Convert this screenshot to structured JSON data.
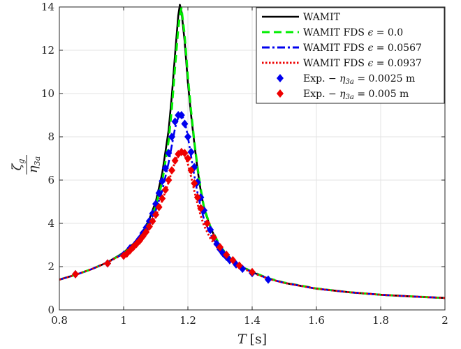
{
  "chart_data": {
    "type": "line",
    "xlabel": "T [s]",
    "ylabel": "ζg / η3a",
    "xlim": [
      0.8,
      2.0
    ],
    "ylim": [
      0,
      14
    ],
    "xticks": [
      "0.8",
      "1",
      "1.2",
      "1.4",
      "1.6",
      "1.8",
      "2"
    ],
    "yticks": [
      "0",
      "2",
      "4",
      "6",
      "8",
      "10",
      "12",
      "14"
    ],
    "grid": true,
    "legend_position": "top-right",
    "series": [
      {
        "name": "WAMIT",
        "kind": "line",
        "color": "#000000",
        "style": "solid",
        "x": [
          0.8,
          0.85,
          0.9,
          0.95,
          1.0,
          1.03,
          1.06,
          1.08,
          1.1,
          1.12,
          1.14,
          1.15,
          1.16,
          1.17,
          1.175,
          1.18,
          1.19,
          1.2,
          1.21,
          1.22,
          1.23,
          1.24,
          1.25,
          1.27,
          1.3,
          1.33,
          1.36,
          1.4,
          1.45,
          1.5,
          1.6,
          1.7,
          1.8,
          1.9,
          2.0
        ],
        "y": [
          1.4,
          1.62,
          1.88,
          2.2,
          2.65,
          3.05,
          3.6,
          4.2,
          5.0,
          6.3,
          8.3,
          9.9,
          11.8,
          13.6,
          14.1,
          13.8,
          12.4,
          10.5,
          9.0,
          7.7,
          6.5,
          5.5,
          4.7,
          3.8,
          2.9,
          2.4,
          2.05,
          1.75,
          1.45,
          1.25,
          0.98,
          0.82,
          0.7,
          0.62,
          0.55
        ]
      },
      {
        "name": "WAMIT FDS ϵ = 0.0",
        "kind": "line",
        "color": "#00ee00",
        "style": "dashed",
        "x": [
          0.8,
          0.85,
          0.9,
          0.95,
          1.0,
          1.03,
          1.06,
          1.08,
          1.1,
          1.12,
          1.14,
          1.15,
          1.16,
          1.17,
          1.175,
          1.18,
          1.19,
          1.2,
          1.21,
          1.22,
          1.23,
          1.24,
          1.25,
          1.27,
          1.3,
          1.33,
          1.36,
          1.4,
          1.45,
          1.5,
          1.6,
          1.7,
          1.8,
          1.9,
          2.0
        ],
        "y": [
          1.4,
          1.62,
          1.88,
          2.2,
          2.62,
          3.0,
          3.5,
          4.05,
          4.8,
          5.9,
          7.8,
          9.3,
          11.2,
          13.0,
          13.6,
          13.95,
          12.7,
          10.8,
          9.2,
          7.8,
          6.6,
          5.6,
          4.75,
          3.85,
          2.95,
          2.42,
          2.07,
          1.76,
          1.46,
          1.26,
          0.99,
          0.82,
          0.7,
          0.62,
          0.55
        ]
      },
      {
        "name": "WAMIT FDS ϵ = 0.0567",
        "kind": "line",
        "color": "#0000ee",
        "style": "dashdot",
        "x": [
          0.8,
          0.85,
          0.9,
          0.95,
          1.0,
          1.03,
          1.06,
          1.08,
          1.1,
          1.12,
          1.14,
          1.15,
          1.16,
          1.17,
          1.18,
          1.19,
          1.2,
          1.21,
          1.22,
          1.23,
          1.24,
          1.25,
          1.27,
          1.3,
          1.33,
          1.36,
          1.4,
          1.45,
          1.5,
          1.6,
          1.7,
          1.8,
          1.9,
          2.0
        ],
        "y": [
          1.4,
          1.62,
          1.88,
          2.2,
          2.6,
          2.95,
          3.45,
          3.95,
          4.6,
          5.5,
          6.8,
          7.6,
          8.4,
          8.9,
          9.0,
          8.75,
          8.0,
          7.1,
          6.2,
          5.4,
          4.75,
          4.2,
          3.5,
          2.8,
          2.35,
          2.03,
          1.74,
          1.45,
          1.25,
          0.98,
          0.82,
          0.7,
          0.62,
          0.55
        ]
      },
      {
        "name": "WAMIT FDS ϵ = 0.0937",
        "kind": "line",
        "color": "#ee0000",
        "style": "dotted",
        "x": [
          0.8,
          0.85,
          0.9,
          0.95,
          1.0,
          1.03,
          1.06,
          1.08,
          1.1,
          1.12,
          1.14,
          1.15,
          1.16,
          1.17,
          1.18,
          1.19,
          1.2,
          1.21,
          1.22,
          1.23,
          1.24,
          1.25,
          1.27,
          1.3,
          1.33,
          1.36,
          1.4,
          1.45,
          1.5,
          1.6,
          1.7,
          1.8,
          1.9,
          2.0
        ],
        "y": [
          1.4,
          1.62,
          1.88,
          2.2,
          2.58,
          2.9,
          3.35,
          3.8,
          4.35,
          5.05,
          5.9,
          6.4,
          6.85,
          7.2,
          7.3,
          7.15,
          6.75,
          6.15,
          5.5,
          4.9,
          4.35,
          3.9,
          3.3,
          2.7,
          2.3,
          2.0,
          1.72,
          1.44,
          1.25,
          0.98,
          0.82,
          0.7,
          0.62,
          0.55
        ]
      },
      {
        "name": "Exp. − η3a = 0.0025 m",
        "kind": "marker",
        "color": "#0000ee",
        "x": [
          0.85,
          0.95,
          1.0,
          1.02,
          1.04,
          1.05,
          1.06,
          1.07,
          1.08,
          1.09,
          1.1,
          1.11,
          1.12,
          1.13,
          1.14,
          1.15,
          1.16,
          1.17,
          1.18,
          1.19,
          1.2,
          1.21,
          1.22,
          1.23,
          1.24,
          1.25,
          1.27,
          1.28,
          1.29,
          1.3,
          1.31,
          1.32,
          1.33,
          1.35,
          1.37,
          1.4,
          1.45
        ],
        "y": [
          1.65,
          2.15,
          2.55,
          2.85,
          3.1,
          3.3,
          3.55,
          3.8,
          4.1,
          4.45,
          4.9,
          5.4,
          5.95,
          6.55,
          7.25,
          8.0,
          8.7,
          9.0,
          9.0,
          8.6,
          8.0,
          7.3,
          6.6,
          5.9,
          5.2,
          4.6,
          3.7,
          3.35,
          3.05,
          2.8,
          2.6,
          2.45,
          2.3,
          2.1,
          1.9,
          1.7,
          1.4
        ]
      },
      {
        "name": "Exp. − η3a = 0.005 m",
        "kind": "marker",
        "color": "#ee0000",
        "x": [
          0.85,
          0.95,
          1.0,
          1.01,
          1.02,
          1.03,
          1.04,
          1.05,
          1.06,
          1.07,
          1.08,
          1.09,
          1.1,
          1.11,
          1.12,
          1.13,
          1.14,
          1.15,
          1.16,
          1.17,
          1.18,
          1.19,
          1.2,
          1.21,
          1.22,
          1.23,
          1.24,
          1.26,
          1.28,
          1.3,
          1.32,
          1.34,
          1.36,
          1.4
        ],
        "y": [
          1.65,
          2.15,
          2.5,
          2.6,
          2.75,
          2.9,
          3.05,
          3.2,
          3.4,
          3.6,
          3.85,
          4.1,
          4.4,
          4.75,
          5.15,
          5.55,
          6.0,
          6.45,
          6.9,
          7.2,
          7.3,
          7.25,
          7.0,
          6.45,
          5.85,
          5.2,
          4.7,
          4.0,
          3.35,
          2.9,
          2.55,
          2.3,
          2.05,
          1.75
        ]
      }
    ]
  }
}
